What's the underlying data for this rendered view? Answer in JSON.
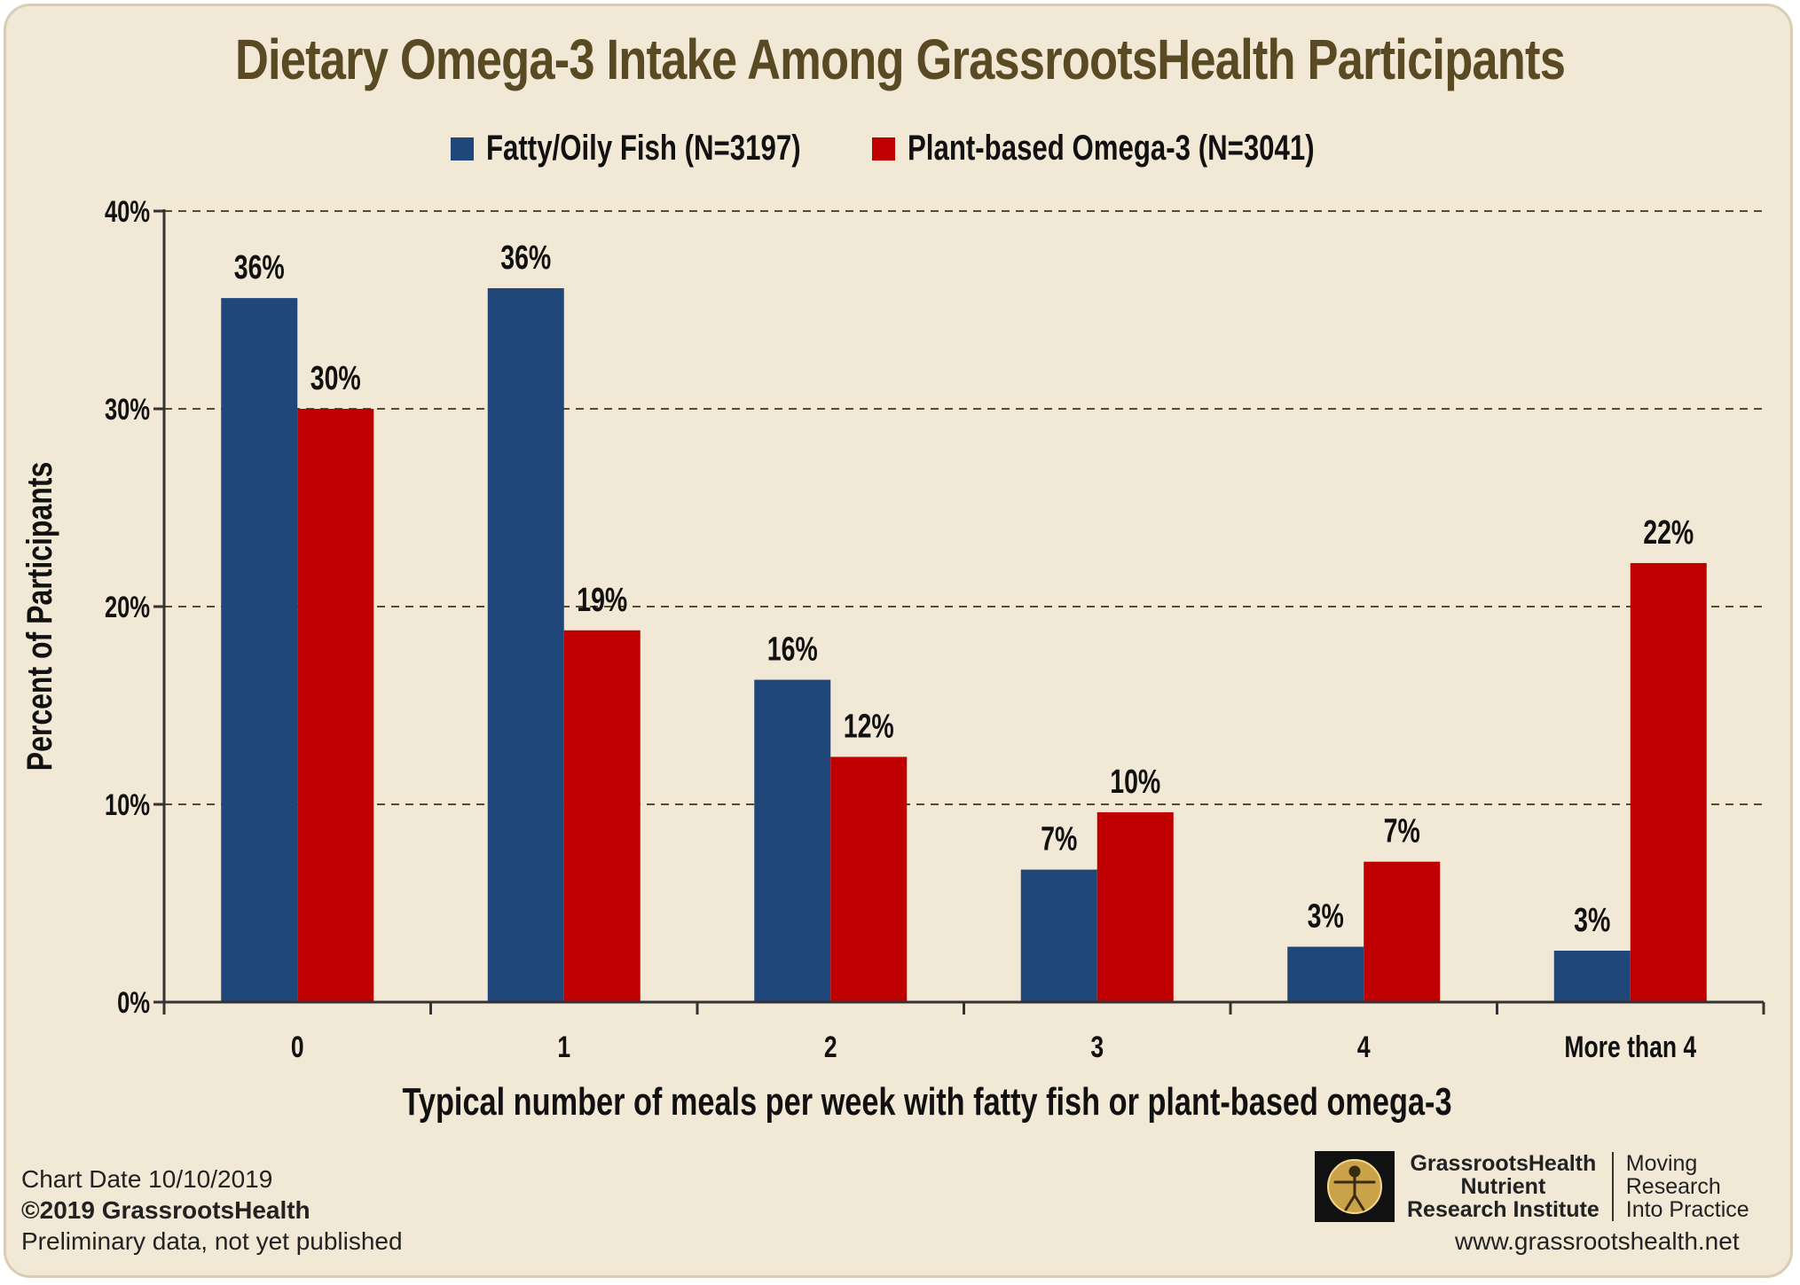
{
  "chart_data": {
    "type": "bar",
    "title": "Dietary Omega-3 Intake Among GrassrootsHealth Participants",
    "xlabel": "Typical number of meals per week with fatty fish or plant-based omega-3",
    "ylabel": "Percent of Participants",
    "categories": [
      "0",
      "1",
      "2",
      "3",
      "4",
      "More than 4"
    ],
    "ylim": [
      0,
      40
    ],
    "yticks": [
      0,
      10,
      20,
      30,
      40
    ],
    "ytick_labels": [
      "0%",
      "10%",
      "20%",
      "30%",
      "40%"
    ],
    "grid": "dashed horizontal",
    "legend_position": "top-center",
    "series": [
      {
        "name": "Fatty/Oily Fish (N=3197)",
        "color": "#1f477a",
        "values": [
          35.6,
          36.1,
          16.3,
          6.7,
          2.8,
          2.6
        ],
        "labels": [
          "36%",
          "36%",
          "16%",
          "7%",
          "3%",
          "3%"
        ]
      },
      {
        "name": "Plant-based Omega-3 (N=3041)",
        "color": "#c00000",
        "values": [
          30.0,
          18.8,
          12.4,
          9.6,
          7.1,
          22.2
        ],
        "labels": [
          "30%",
          "19%",
          "12%",
          "10%",
          "7%",
          "22%"
        ]
      }
    ]
  },
  "footer": {
    "chart_date": "Chart Date  10/10/2019",
    "copyright": "©2019 GrassrootsHealth",
    "note": "Preliminary data, not yet published",
    "org_line1": "GrassrootsHealth",
    "org_line2": "Nutrient",
    "org_line3": "Research Institute",
    "tag_line1": "Moving",
    "tag_line2": "Research",
    "tag_line3": "Into Practice",
    "website": "www.grassrootshealth.net"
  }
}
